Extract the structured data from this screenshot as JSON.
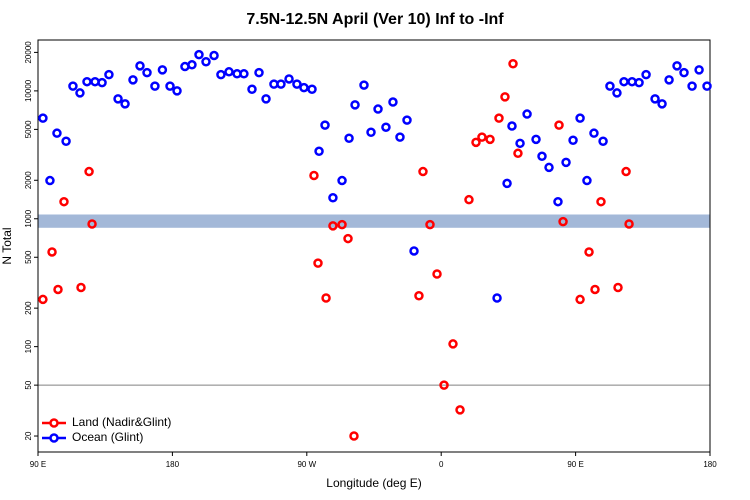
{
  "chart_data": {
    "type": "scatter",
    "title": "7.5N-12.5N April (Ver 10)   Inf to -Inf",
    "x_label": "Longitude (deg E)",
    "y_label": "N Total",
    "xlim": [
      90,
      540
    ],
    "ylim": [
      15,
      25000
    ],
    "log_y": true,
    "xticks": [
      {
        "value": 90,
        "label": "90 E"
      },
      {
        "value": 180,
        "label": "180"
      },
      {
        "value": 270,
        "label": "90 W"
      },
      {
        "value": 360,
        "label": "0"
      },
      {
        "value": 450,
        "label": "90 E"
      },
      {
        "value": 540,
        "label": "180"
      }
    ],
    "yticks": [
      20,
      50,
      100,
      200,
      500,
      1000,
      2000,
      5000,
      10000,
      20000
    ],
    "hline": {
      "value": 50,
      "color": "#808080"
    },
    "hband": {
      "from": 850,
      "to": 1080,
      "color": "#a3b8d8"
    },
    "legend": "bottom-left",
    "series": [
      {
        "name": "Land (Nadir&Glint)",
        "color": "#ff0000",
        "x": [
          93.3,
          99.4,
          103.4,
          107.4,
          118.8,
          124.2,
          126.2,
          274.8,
          277.5,
          282.9,
          287.5,
          293.6,
          297.6,
          301.6,
          347.8,
          352.5,
          345.1,
          357.2,
          361.9,
          367.9,
          372.6,
          378.6,
          383.3,
          387.3,
          392.7,
          398.7,
          402.7,
          408.1,
          411.4,
          438.9,
          441.6,
          453,
          459,
          463,
          467,
          478.4,
          483.8,
          485.8
        ],
        "values": [
          234,
          550,
          280,
          1360,
          290,
          2340,
          910,
          2180,
          450,
          240,
          880,
          900,
          700,
          20,
          2340,
          900,
          250,
          370,
          50,
          105,
          32,
          1410,
          3960,
          4350,
          4180,
          6120,
          8980,
          16300,
          3250,
          5400,
          950,
          234,
          550,
          280,
          1360,
          290,
          2340,
          910
        ]
      },
      {
        "name": "Ocean (Glint)",
        "color": "#0000ff",
        "x": [
          93.3,
          98,
          102.7,
          108.8,
          113.4,
          118.1,
          122.8,
          128.2,
          132.9,
          137.5,
          143.6,
          148.3,
          153.6,
          158.3,
          163,
          168.3,
          173.3,
          178.4,
          183.1,
          188.4,
          193.1,
          197.8,
          202.5,
          207.9,
          212.5,
          217.9,
          223.3,
          227.9,
          233.3,
          238,
          242.7,
          248,
          252.7,
          258.1,
          263.4,
          268.1,
          273.5,
          278.2,
          282.2,
          287.5,
          293.6,
          298.3,
          302.3,
          308.3,
          313,
          317.7,
          323,
          327.7,
          332.4,
          337.1,
          341.8,
          397.4,
          404.1,
          407.4,
          412.8,
          417.5,
          423.5,
          427.5,
          432.2,
          438.2,
          443.6,
          448.3,
          453,
          457.6,
          462.3,
          468.4,
          473,
          477.7,
          482.4,
          487.8,
          492.5,
          497.2,
          503.2,
          507.9,
          512.6,
          517.9,
          522.6,
          528,
          532.7,
          538
        ],
        "values": [
          6120,
          1990,
          4670,
          4040,
          10900,
          9640,
          11800,
          11800,
          11600,
          13400,
          8660,
          7920,
          12200,
          15700,
          13900,
          10900,
          14600,
          10900,
          10000,
          15500,
          16000,
          19200,
          16900,
          18900,
          13400,
          14100,
          13600,
          13600,
          10300,
          13900,
          8660,
          11300,
          11300,
          12400,
          11300,
          10600,
          10300,
          3370,
          5400,
          1460,
          1990,
          4260,
          7770,
          11100,
          4750,
          7210,
          5200,
          8180,
          4350,
          5910,
          560,
          240,
          1890,
          5310,
          3890,
          6590,
          4180,
          3080,
          2520,
          1360,
          2760,
          4110,
          6120,
          1990,
          4670,
          4040,
          10900,
          9640,
          11800,
          11800,
          11600,
          13400,
          8660,
          7920,
          12200,
          15700,
          13900,
          10900,
          14600,
          10900
        ]
      }
    ]
  }
}
